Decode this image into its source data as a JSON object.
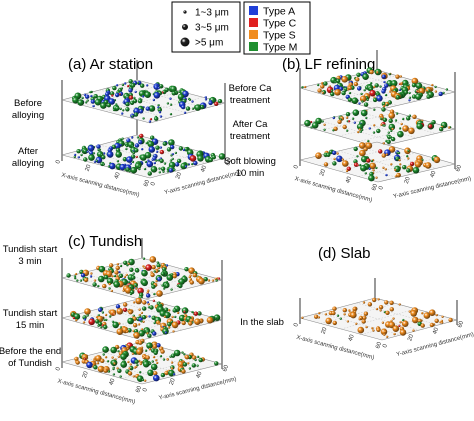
{
  "legend": {
    "sizes": [
      {
        "label": "1~3 μm",
        "marker": "small"
      },
      {
        "label": "3~5 μm",
        "marker": "medium"
      },
      {
        "label": ">5 μm",
        "marker": "large"
      }
    ],
    "types": [
      {
        "label": "Type A",
        "color": "#1f3fd8"
      },
      {
        "label": "Type C",
        "color": "#e02020"
      },
      {
        "label": "Type S",
        "color": "#f08c1e"
      },
      {
        "label": "Type M",
        "color": "#1f8f2f"
      }
    ]
  },
  "chart_data": [
    {
      "type": "scatter",
      "panel": "a",
      "title": "(a) Ar station",
      "xlabel": "X-axis scanning distance(mm)",
      "ylabel": "Y-axis scanning distance(mm)",
      "x_ticks": [
        "0",
        "20",
        "40",
        "60"
      ],
      "y_ticks": [
        "0",
        "20",
        "40",
        "60"
      ],
      "layers": [
        {
          "label": "Before\nalloying",
          "density": "high",
          "composition": {
            "Type M": 0.6,
            "Type A": 0.35,
            "Type C": 0.05
          }
        },
        {
          "label": "After\nalloying",
          "density": "high",
          "composition": {
            "Type M": 0.6,
            "Type A": 0.35,
            "Type C": 0.05
          }
        }
      ]
    },
    {
      "type": "scatter",
      "panel": "b",
      "title": "(b) LF refining",
      "xlabel": "X-axis scanning distance(mm)",
      "ylabel": "Y-axis scanning distance(mm)",
      "x_ticks": [
        "0",
        "20",
        "40",
        "60"
      ],
      "y_ticks": [
        "0",
        "20",
        "40",
        "60"
      ],
      "layers": [
        {
          "label": "Before Ca\ntreatment",
          "density": "high",
          "composition": {
            "Type M": 0.55,
            "Type S": 0.3,
            "Type A": 0.1,
            "Type C": 0.05
          }
        },
        {
          "label": "After Ca\ntreatment",
          "density": "medium",
          "composition": {
            "Type M": 0.5,
            "Type S": 0.35,
            "Type A": 0.1,
            "Type C": 0.05
          }
        },
        {
          "label": "Soft blowing\n10 min",
          "density": "medium",
          "composition": {
            "Type S": 0.5,
            "Type M": 0.35,
            "Type C": 0.1,
            "Type A": 0.05
          }
        }
      ]
    },
    {
      "type": "scatter",
      "panel": "c",
      "title": "(c) Tundish",
      "xlabel": "X-axis scanning distance(mm)",
      "ylabel": "Y-axis scanning distance(mm)",
      "x_ticks": [
        "0",
        "20",
        "40",
        "60"
      ],
      "y_ticks": [
        "0",
        "20",
        "40",
        "60"
      ],
      "layers": [
        {
          "label": "Tundish start\n3 min",
          "density": "high",
          "composition": {
            "Type M": 0.5,
            "Type S": 0.4,
            "Type A": 0.05,
            "Type C": 0.05
          }
        },
        {
          "label": "Tundish start\n15 min",
          "density": "high",
          "composition": {
            "Type M": 0.5,
            "Type S": 0.4,
            "Type A": 0.05,
            "Type C": 0.05
          }
        },
        {
          "label": "Before the end\nof Tundish",
          "density": "high",
          "composition": {
            "Type S": 0.5,
            "Type M": 0.4,
            "Type A": 0.05,
            "Type C": 0.05
          }
        }
      ]
    },
    {
      "type": "scatter",
      "panel": "d",
      "title": "(d) Slab",
      "xlabel": "X-axis scanning distance(mm)",
      "ylabel": "Y-axis scanning distance(mm)",
      "x_ticks": [
        "0",
        "20",
        "40",
        "60"
      ],
      "y_ticks": [
        "0",
        "20",
        "40",
        "60"
      ],
      "layers": [
        {
          "label": "In the slab",
          "density": "medium",
          "composition": {
            "Type S": 0.92,
            "Type M": 0.05,
            "Type C": 0.03
          }
        }
      ]
    }
  ]
}
